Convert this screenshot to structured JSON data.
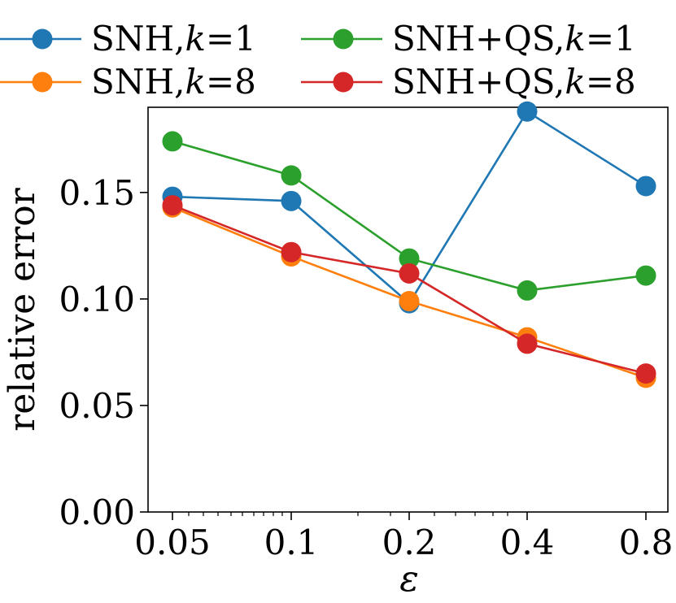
{
  "chart_data": {
    "type": "line",
    "title": "",
    "xlabel": "ε",
    "ylabel": "relative error",
    "categories": [
      "0.05",
      "0.1",
      "0.2",
      "0.4",
      "0.8"
    ],
    "ylim": [
      0,
      0.19
    ],
    "yticks": [
      "0.00",
      "0.05",
      "0.10",
      "0.15"
    ],
    "ytick_values": [
      0.0,
      0.05,
      0.1,
      0.15
    ],
    "legend_position": "top",
    "series": [
      {
        "name": "SNH,k=1",
        "prefix": "SNH,",
        "k": "k",
        "suffix": "=1",
        "color": "#1f77b4",
        "values": [
          0.148,
          0.146,
          0.098,
          0.188,
          0.153
        ]
      },
      {
        "name": "SNH,k=8",
        "prefix": "SNH,",
        "k": "k",
        "suffix": "=8",
        "color": "#ff7f0e",
        "values": [
          0.143,
          0.12,
          0.099,
          0.082,
          0.063
        ]
      },
      {
        "name": "SNH+QS,k=1",
        "prefix": "SNH+QS,",
        "k": "k",
        "suffix": "=1",
        "color": "#2ca02c",
        "values": [
          0.174,
          0.158,
          0.119,
          0.104,
          0.111
        ]
      },
      {
        "name": "SNH+QS,k=8",
        "prefix": "SNH+QS,",
        "k": "k",
        "suffix": "=8",
        "color": "#d62728",
        "values": [
          0.144,
          0.122,
          0.112,
          0.079,
          0.065
        ]
      }
    ]
  }
}
